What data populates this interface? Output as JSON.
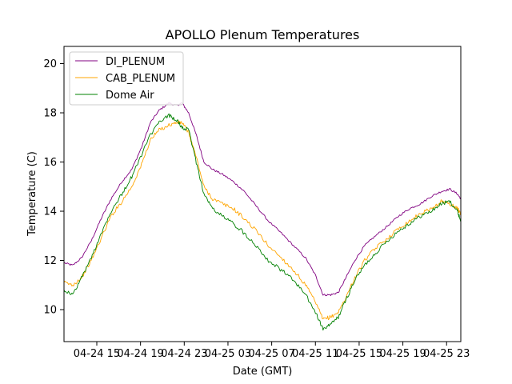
{
  "chart_data": {
    "type": "line",
    "title": "APOLLO Plenum Temperatures",
    "xlabel": "Date (GMT)",
    "ylabel": "Temperature (C)",
    "x_unit": "hours since 04-24 12:00 GMT",
    "xlim": [
      0,
      36.3
    ],
    "ylim": [
      8.7,
      20.7
    ],
    "x_ticks": [
      {
        "x": 3,
        "label": "04-24 15"
      },
      {
        "x": 7,
        "label": "04-24 19"
      },
      {
        "x": 11,
        "label": "04-24 23"
      },
      {
        "x": 15,
        "label": "04-25 03"
      },
      {
        "x": 19,
        "label": "04-25 07"
      },
      {
        "x": 23,
        "label": "04-25 11"
      },
      {
        "x": 27,
        "label": "04-25 15"
      },
      {
        "x": 31,
        "label": "04-25 19"
      },
      {
        "x": 35,
        "label": "04-25 23"
      }
    ],
    "y_ticks": [
      {
        "y": 10,
        "label": "10"
      },
      {
        "y": 12,
        "label": "12"
      },
      {
        "y": 14,
        "label": "14"
      },
      {
        "y": 16,
        "label": "16"
      },
      {
        "y": 18,
        "label": "18"
      },
      {
        "y": 20,
        "label": "20"
      }
    ],
    "legend_position": "top-left",
    "series": [
      {
        "name": "DI_PLENUM",
        "color": "#800080",
        "x": [
          0,
          0.8,
          1.6,
          2.5,
          3.4,
          4.3,
          5.3,
          6.2,
          7.1,
          7.9,
          8.7,
          9.6,
          10.3,
          10.8,
          11.4,
          12.1,
          12.8,
          13.6,
          14.5,
          15.5,
          16.5,
          17.6,
          18.7,
          19.9,
          21.0,
          22.1,
          23.0,
          23.7,
          24.4,
          25.1,
          25.8,
          26.6,
          27.5,
          28.5,
          29.6,
          30.6,
          31.6,
          32.6,
          33.6,
          34.5,
          35.3,
          36.0,
          36.3
        ],
        "values": [
          11.9,
          11.8,
          12.1,
          12.8,
          13.7,
          14.5,
          15.2,
          15.7,
          16.6,
          17.6,
          18.1,
          18.4,
          18.3,
          18.4,
          18.0,
          17.1,
          16.0,
          15.7,
          15.5,
          15.2,
          14.8,
          14.2,
          13.6,
          13.1,
          12.6,
          12.1,
          11.4,
          10.6,
          10.6,
          10.7,
          11.3,
          12.0,
          12.6,
          13.0,
          13.4,
          13.8,
          14.1,
          14.3,
          14.6,
          14.8,
          14.9,
          14.7,
          14.5
        ]
      },
      {
        "name": "CAB_PLENUM",
        "color": "#FFA500",
        "x": [
          0,
          0.8,
          1.6,
          2.5,
          3.4,
          4.3,
          5.3,
          6.2,
          7.1,
          7.9,
          8.7,
          9.6,
          10.3,
          10.8,
          11.4,
          12.1,
          12.8,
          13.6,
          14.5,
          15.5,
          16.5,
          17.6,
          18.7,
          19.9,
          21.0,
          22.1,
          23.0,
          23.7,
          24.4,
          25.1,
          25.8,
          26.6,
          27.5,
          28.5,
          29.6,
          30.6,
          31.6,
          32.6,
          33.6,
          34.5,
          35.3,
          36.0,
          36.3
        ],
        "values": [
          11.1,
          11.0,
          11.3,
          12.0,
          12.9,
          13.8,
          14.4,
          15.0,
          15.9,
          16.9,
          17.3,
          17.5,
          17.6,
          17.6,
          17.2,
          16.2,
          15.0,
          14.5,
          14.3,
          14.1,
          13.7,
          13.2,
          12.6,
          12.1,
          11.6,
          11.0,
          10.3,
          9.6,
          9.7,
          9.9,
          10.5,
          11.3,
          12.0,
          12.5,
          12.9,
          13.3,
          13.6,
          13.9,
          14.1,
          14.4,
          14.3,
          14.1,
          13.9
        ]
      },
      {
        "name": "Dome Air",
        "color": "#008000",
        "x": [
          0,
          0.8,
          1.6,
          2.5,
          3.4,
          4.3,
          5.3,
          6.2,
          7.1,
          7.9,
          8.7,
          9.6,
          10.3,
          10.8,
          11.4,
          12.1,
          12.8,
          13.6,
          14.5,
          15.5,
          16.5,
          17.6,
          18.7,
          19.9,
          21.0,
          22.1,
          23.0,
          23.7,
          24.4,
          25.1,
          25.8,
          26.6,
          27.5,
          28.5,
          29.6,
          30.6,
          31.6,
          32.6,
          33.6,
          34.5,
          35.3,
          36.0,
          36.3
        ],
        "values": [
          10.8,
          10.6,
          11.3,
          12.1,
          13.1,
          14.0,
          14.7,
          15.4,
          16.3,
          17.1,
          17.6,
          17.9,
          17.7,
          17.4,
          17.3,
          16.0,
          14.7,
          14.1,
          13.8,
          13.5,
          13.1,
          12.6,
          12.0,
          11.6,
          11.2,
          10.6,
          9.9,
          9.2,
          9.4,
          9.7,
          10.4,
          11.2,
          11.8,
          12.3,
          12.8,
          13.2,
          13.5,
          13.8,
          14.0,
          14.3,
          14.4,
          14.0,
          13.6
        ]
      }
    ]
  }
}
